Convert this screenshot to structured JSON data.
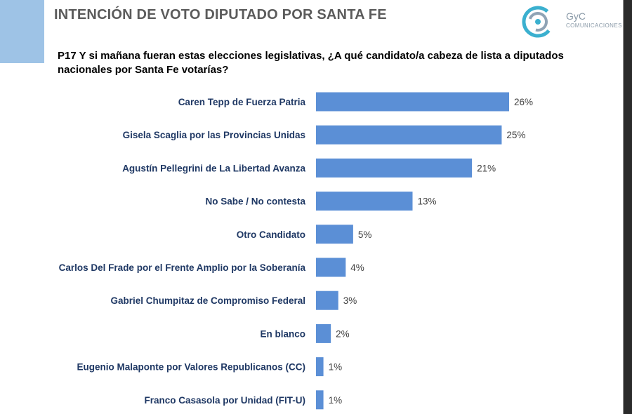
{
  "header": {
    "title": "INTENCIÓN DE VOTO DIPUTADO POR SANTA FE",
    "logo_brand": "GyC",
    "logo_sub": "COMUNICACIONES"
  },
  "question": "P17 Y si mañana fueran estas elecciones legislativas, ¿A qué candidato/a cabeza de lista a diputados nacionales por Santa Fe votarías?",
  "colors": {
    "bar": "#5b8fd6",
    "label": "#1f3864",
    "accent": "#9ec3e6"
  },
  "chart_data": {
    "type": "bar",
    "orientation": "horizontal",
    "title": "INTENCIÓN DE VOTO DIPUTADO POR SANTA FE",
    "categories": [
      "Caren Tepp de Fuerza Patria",
      "Gisela Scaglia por las Provincias Unidas",
      "Agustín Pellegrini de La Libertad Avanza",
      "No Sabe / No contesta",
      "Otro Candidato",
      "Carlos Del Frade por el Frente Amplio por la Soberanía",
      "Gabriel Chumpitaz de Compromiso Federal",
      "En blanco",
      "Eugenio Malaponte por Valores Republicanos (CC)",
      "Franco Casasola por Unidad (FIT-U)"
    ],
    "values": [
      26,
      25,
      21,
      13,
      5,
      4,
      3,
      2,
      1,
      1
    ],
    "value_labels": [
      "26%",
      "25%",
      "21%",
      "13%",
      "5%",
      "4%",
      "3%",
      "2%",
      "1%",
      "1%"
    ],
    "unit": "%",
    "xlim": [
      0,
      26
    ],
    "grid": false,
    "legend": "none"
  }
}
